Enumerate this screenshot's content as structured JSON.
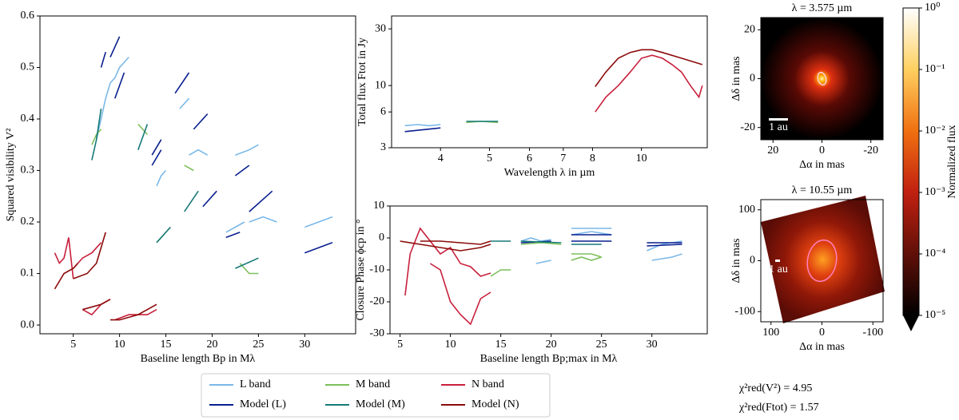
{
  "chart_data": [
    {
      "type": "line",
      "xlabel": "Baseline length Bp in Mλ",
      "ylabel": "Squared visibility V²",
      "xlim": [
        1.4,
        35.5
      ],
      "ylim": [
        -0.017,
        0.6
      ],
      "xticks": [
        5,
        10,
        15,
        20,
        25,
        30
      ],
      "yticks": [
        {
          "value": 0,
          "label": "0.0"
        },
        0.1,
        0.2,
        0.3,
        0.4,
        0.5,
        0.6
      ],
      "legend": "bottom",
      "series": [
        {
          "name": "L band",
          "color": "#7ab8e8",
          "x": [
            7.5,
            8,
            8.5,
            9,
            9.5,
            10,
            10.5,
            11,
            null,
            14,
            14.5,
            15,
            null,
            16.5,
            17.5,
            null,
            17.5,
            18.5,
            19.5,
            null,
            21.5,
            22.5,
            23.5,
            null,
            22.5,
            24,
            25,
            null,
            24,
            25.5,
            27,
            null,
            30,
            33
          ],
          "values": [
            0.36,
            0.4,
            0.44,
            0.47,
            0.48,
            0.5,
            0.51,
            0.52,
            null,
            0.27,
            0.29,
            0.3,
            null,
            0.42,
            0.44,
            null,
            0.33,
            0.34,
            0.33,
            null,
            0.18,
            0.19,
            0.2,
            null,
            0.33,
            0.34,
            0.35,
            null,
            0.2,
            0.21,
            0.2,
            null,
            0.19,
            0.21
          ]
        },
        {
          "name": "Model (L)",
          "color": "#0a1f8f",
          "x": [
            8,
            8.5,
            null,
            9,
            10,
            null,
            9.5,
            10.5,
            null,
            13.5,
            14.5,
            null,
            13.5,
            14.5,
            null,
            16,
            17.5,
            null,
            18,
            19.5,
            null,
            19,
            20.5,
            null,
            21.5,
            23,
            null,
            22.5,
            24,
            null,
            24,
            26.5,
            null,
            30,
            33
          ],
          "values": [
            0.5,
            0.53,
            null,
            0.52,
            0.56,
            null,
            0.44,
            0.49,
            null,
            0.31,
            0.34,
            null,
            0.33,
            0.36,
            null,
            0.45,
            0.49,
            null,
            0.38,
            0.41,
            null,
            0.23,
            0.26,
            null,
            0.17,
            0.18,
            null,
            0.29,
            0.31,
            null,
            0.22,
            0.26,
            null,
            0.14,
            0.16
          ]
        },
        {
          "name": "M band",
          "color": "#7cbf5a",
          "x": [
            7,
            7.5,
            8,
            null,
            12,
            13,
            null,
            14,
            15,
            15.5,
            null,
            17,
            18,
            null,
            23,
            24,
            25
          ],
          "values": [
            0.35,
            0.37,
            0.38,
            null,
            0.39,
            0.37,
            null,
            0.16,
            0.18,
            0.19,
            null,
            0.31,
            0.3,
            null,
            0.12,
            0.1,
            0.1
          ]
        },
        {
          "name": "Model (M)",
          "color": "#167a78",
          "x": [
            7,
            7.5,
            8,
            null,
            12,
            13,
            null,
            14,
            15.5,
            null,
            17,
            18.5,
            null,
            22.5,
            25
          ],
          "values": [
            0.32,
            0.36,
            0.42,
            null,
            0.34,
            0.39,
            null,
            0.16,
            0.19,
            null,
            0.22,
            0.26,
            null,
            0.11,
            0.13
          ]
        },
        {
          "name": "N band",
          "color": "#c8203c",
          "x": [
            3,
            3.5,
            4,
            4.5,
            5,
            null,
            5,
            6,
            7,
            8,
            null,
            6,
            7,
            8,
            9,
            null,
            9.5,
            11,
            13,
            14
          ],
          "values": [
            0.14,
            0.12,
            0.13,
            0.17,
            0.09,
            null,
            0.11,
            0.13,
            0.14,
            0.16,
            null,
            0.03,
            0.02,
            0.04,
            0.05,
            null,
            0.01,
            0.02,
            0.02,
            0.03
          ]
        },
        {
          "name": "Model (N)",
          "color": "#8b0a0a",
          "x": [
            3,
            4,
            5,
            5.5,
            null,
            5,
            6.5,
            7.5,
            8.5,
            null,
            6,
            8,
            9,
            null,
            9,
            10,
            12,
            14
          ],
          "values": [
            0.07,
            0.1,
            0.11,
            0.12,
            null,
            0.09,
            0.1,
            0.12,
            0.18,
            null,
            0.03,
            0.04,
            0.05,
            null,
            0.01,
            0.01,
            0.02,
            0.04
          ]
        }
      ]
    },
    {
      "type": "line",
      "xlabel": "Wavelength λ in µm",
      "ylabel": "Total flux Ftot in Jy",
      "xlim": [
        3.2,
        13.5
      ],
      "xlog": true,
      "ylim": [
        3,
        38.5
      ],
      "ylog": true,
      "xticks": [
        4,
        5,
        6,
        7,
        8,
        10
      ],
      "yticks": [
        3,
        6,
        10,
        30
      ],
      "series": [
        {
          "color": "#7ab8e8",
          "x": [
            3.4,
            3.6,
            3.8,
            4.0
          ],
          "values": [
            4.6,
            4.7,
            4.6,
            4.7
          ]
        },
        {
          "color": "#0a1f8f",
          "x": [
            3.4,
            4.0
          ],
          "values": [
            4.1,
            4.4
          ]
        },
        {
          "color": "#7cbf5a",
          "x": [
            4.5,
            4.8,
            5.2
          ],
          "values": [
            4.9,
            5.0,
            4.9
          ]
        },
        {
          "color": "#167a78",
          "x": [
            4.5,
            5.2
          ],
          "values": [
            5.0,
            5.0
          ]
        },
        {
          "color": "#c8203c",
          "x": [
            8.1,
            8.5,
            9,
            9.5,
            10,
            10.5,
            11,
            11.5,
            12,
            12.5,
            13,
            13.2
          ],
          "values": [
            6,
            8,
            10,
            13,
            17,
            18,
            17,
            15,
            13,
            10,
            8,
            10
          ]
        },
        {
          "color": "#8b0a0a",
          "x": [
            8.1,
            8.5,
            9,
            9.5,
            10,
            10.5,
            11,
            12,
            13.2
          ],
          "values": [
            9.8,
            13,
            17,
            19,
            20,
            20,
            19,
            17,
            15
          ]
        }
      ]
    },
    {
      "type": "line",
      "xlabel": "Baseline length Bp;max in Mλ",
      "ylabel": "Closure Phase ϕcp in °",
      "xlim": [
        4,
        35.5
      ],
      "ylim": [
        -30,
        10
      ],
      "xticks": [
        5,
        10,
        15,
        20,
        25,
        30
      ],
      "yticks": [
        -30,
        -20,
        -10,
        0,
        10
      ],
      "series": [
        {
          "color": "#7ab8e8",
          "x": [
            17,
            18,
            19,
            20,
            null,
            22,
            24,
            26,
            null,
            22,
            24,
            26,
            null,
            18.5,
            20,
            null,
            29.5,
            31,
            33,
            null,
            30,
            32,
            33
          ],
          "values": [
            -1,
            0,
            -1,
            -0.5,
            null,
            3,
            3,
            3,
            null,
            1,
            2,
            1,
            null,
            -8,
            -7,
            null,
            -4,
            -2,
            -1,
            null,
            -7,
            -6,
            -5
          ]
        },
        {
          "color": "#0a1f8f",
          "x": [
            17,
            20,
            null,
            22,
            26,
            null,
            22,
            26,
            null,
            29.5,
            33,
            null,
            29.5,
            33
          ],
          "values": [
            -1.5,
            -1,
            null,
            1,
            1,
            null,
            -1,
            -1,
            null,
            -1.5,
            -1.5,
            null,
            -2.5,
            -2
          ]
        },
        {
          "color": "#7cbf5a",
          "x": [
            14,
            15,
            16,
            null,
            17,
            19,
            21,
            null,
            22,
            23,
            24,
            25,
            null,
            22,
            24,
            25
          ],
          "values": [
            -12,
            -10,
            -10,
            null,
            -2,
            -1.5,
            -2,
            null,
            -7,
            -6,
            -7,
            -6,
            null,
            -5,
            -5,
            -6
          ]
        },
        {
          "color": "#167a78",
          "x": [
            14,
            16,
            null,
            17,
            21,
            null,
            22,
            25
          ],
          "values": [
            -1,
            -1,
            null,
            -1,
            -1.5,
            null,
            -2,
            -2
          ]
        },
        {
          "color": "#c8203c",
          "x": [
            5.5,
            6,
            7,
            8,
            9,
            10,
            11,
            12,
            13,
            14,
            null,
            8,
            9,
            10,
            11,
            12,
            13,
            14
          ],
          "values": [
            -18,
            -5,
            3,
            -1,
            -5,
            -3,
            -8,
            -9,
            -12,
            -11,
            null,
            -8,
            -10,
            -20,
            -24,
            -27,
            -19,
            -17
          ]
        },
        {
          "color": "#8b0a0a",
          "x": [
            5,
            7,
            9,
            11,
            13,
            14,
            null,
            7,
            9,
            11,
            13,
            14
          ],
          "values": [
            -1,
            -2,
            -3,
            -4,
            -3,
            -2,
            null,
            -1,
            -1,
            -1.5,
            -2,
            -1
          ]
        }
      ]
    },
    {
      "type": "image",
      "title": "λ = 3.575 µm",
      "xlabel": "Δα in mas",
      "ylabel": "Δδ in mas",
      "xlim": [
        25,
        -25
      ],
      "ylim": [
        -25,
        25
      ],
      "xticks": [
        20,
        0,
        -20
      ],
      "yticks": [
        -20,
        0,
        20
      ],
      "scalebar": "1 au"
    },
    {
      "type": "image",
      "title": "λ = 10.55 µm",
      "xlabel": "Δα in mas",
      "ylabel": "Δδ in mas",
      "xlim": [
        120,
        -120
      ],
      "ylim": [
        -120,
        120
      ],
      "xticks": [
        100,
        0,
        -100
      ],
      "yticks": [
        -100,
        0,
        100
      ],
      "scalebar": "1 au"
    },
    {
      "type": "colorbar",
      "label": "Normalized flux",
      "zlim": [
        1e-05,
        1
      ],
      "zlog": true,
      "zticks": [
        {
          "value": 1,
          "label": "10⁰"
        },
        {
          "value": 0.1,
          "label": "10⁻¹"
        },
        {
          "value": 0.01,
          "label": "10⁻²"
        },
        {
          "value": 0.001,
          "label": "10⁻³"
        },
        {
          "value": 0.0001,
          "label": "10⁻⁴"
        },
        {
          "value": 1e-05,
          "label": "10⁻⁵"
        }
      ]
    }
  ],
  "annotations": [
    "χ²red(V²) = 4.95",
    "χ²red(Ftot) = 1.57"
  ]
}
